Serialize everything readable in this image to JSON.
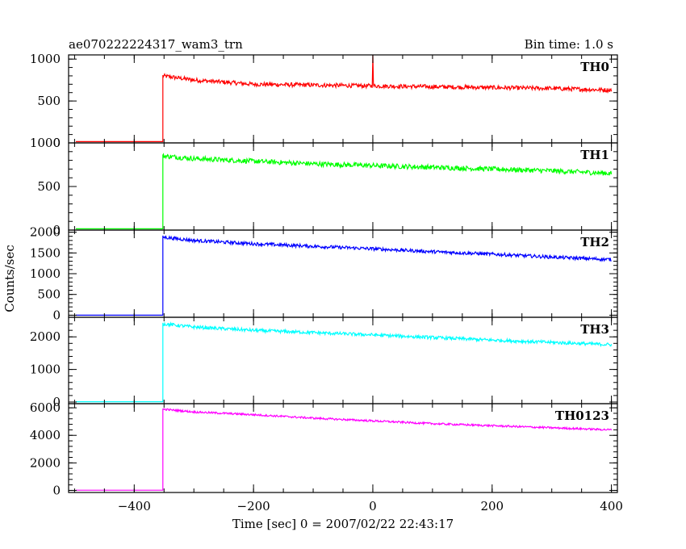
{
  "chart_data": {
    "type": "line",
    "title": "ae070222224317_wam3_trn",
    "subtitle": "Bin time: 1.0 s",
    "xlabel": "Time [sec] 0 = 2007/02/22 22:43:17",
    "ylabel": "Counts/sec",
    "xlim": [
      -510,
      410
    ],
    "x_ticks": [
      "−400",
      "−200",
      "0",
      "200",
      "400"
    ],
    "x_tick_values": [
      -400,
      -200,
      0,
      200,
      400
    ],
    "grid": false,
    "panels": [
      {
        "name": "TH0",
        "color": "#ff0000",
        "ylim": [
          0,
          1050
        ],
        "y_ticks": [
          "0",
          "500",
          "1000"
        ],
        "y_tick_values": [
          0,
          500,
          1000
        ],
        "baseline": 15,
        "start_time": -352,
        "end_time": 400,
        "x": [
          -352,
          -300,
          -200,
          -100,
          0,
          100,
          200,
          300,
          400
        ],
        "y": [
          800,
          750,
          700,
          690,
          680,
          670,
          660,
          650,
          630
        ],
        "noise": 25,
        "spike": {
          "x": 0,
          "y": 1050
        }
      },
      {
        "name": "TH1",
        "color": "#00ff00",
        "ylim": [
          0,
          1000
        ],
        "y_ticks": [
          "0",
          "500",
          "1000"
        ],
        "y_tick_values": [
          0,
          500,
          1000
        ],
        "baseline": 15,
        "start_time": -352,
        "end_time": 400,
        "x": [
          -352,
          -300,
          -200,
          -100,
          0,
          100,
          200,
          300,
          400
        ],
        "y": [
          850,
          820,
          790,
          760,
          740,
          720,
          700,
          680,
          650
        ],
        "noise": 28
      },
      {
        "name": "TH2",
        "color": "#0000ff",
        "ylim": [
          -50,
          2050
        ],
        "y_ticks": [
          "0",
          "500",
          "1000",
          "1500",
          "2000"
        ],
        "y_tick_values": [
          0,
          500,
          1000,
          1500,
          2000
        ],
        "baseline": 0,
        "start_time": -352,
        "end_time": 400,
        "x": [
          -352,
          -300,
          -200,
          -100,
          0,
          100,
          200,
          300,
          400
        ],
        "y": [
          1880,
          1800,
          1720,
          1660,
          1600,
          1530,
          1470,
          1400,
          1340
        ],
        "noise": 40
      },
      {
        "name": "TH3",
        "color": "#00ffff",
        "ylim": [
          -50,
          2600
        ],
        "y_ticks": [
          "0",
          "1000",
          "2000"
        ],
        "y_tick_values": [
          0,
          1000,
          2000
        ],
        "baseline": 10,
        "start_time": -352,
        "end_time": 400,
        "x": [
          -352,
          -300,
          -200,
          -100,
          0,
          100,
          200,
          300,
          400
        ],
        "y": [
          2400,
          2300,
          2200,
          2130,
          2060,
          1980,
          1900,
          1830,
          1760
        ],
        "noise": 50
      },
      {
        "name": "TH0123",
        "color": "#ff00ff",
        "ylim": [
          -150,
          6300
        ],
        "y_ticks": [
          "0",
          "2000",
          "4000",
          "6000"
        ],
        "y_tick_values": [
          0,
          2000,
          4000,
          6000
        ],
        "baseline": 15,
        "start_time": -352,
        "end_time": 400,
        "x": [
          -352,
          -300,
          -200,
          -100,
          0,
          100,
          200,
          300,
          400
        ],
        "y": [
          5900,
          5700,
          5500,
          5250,
          5050,
          4850,
          4700,
          4550,
          4400
        ],
        "noise": 70
      }
    ]
  }
}
